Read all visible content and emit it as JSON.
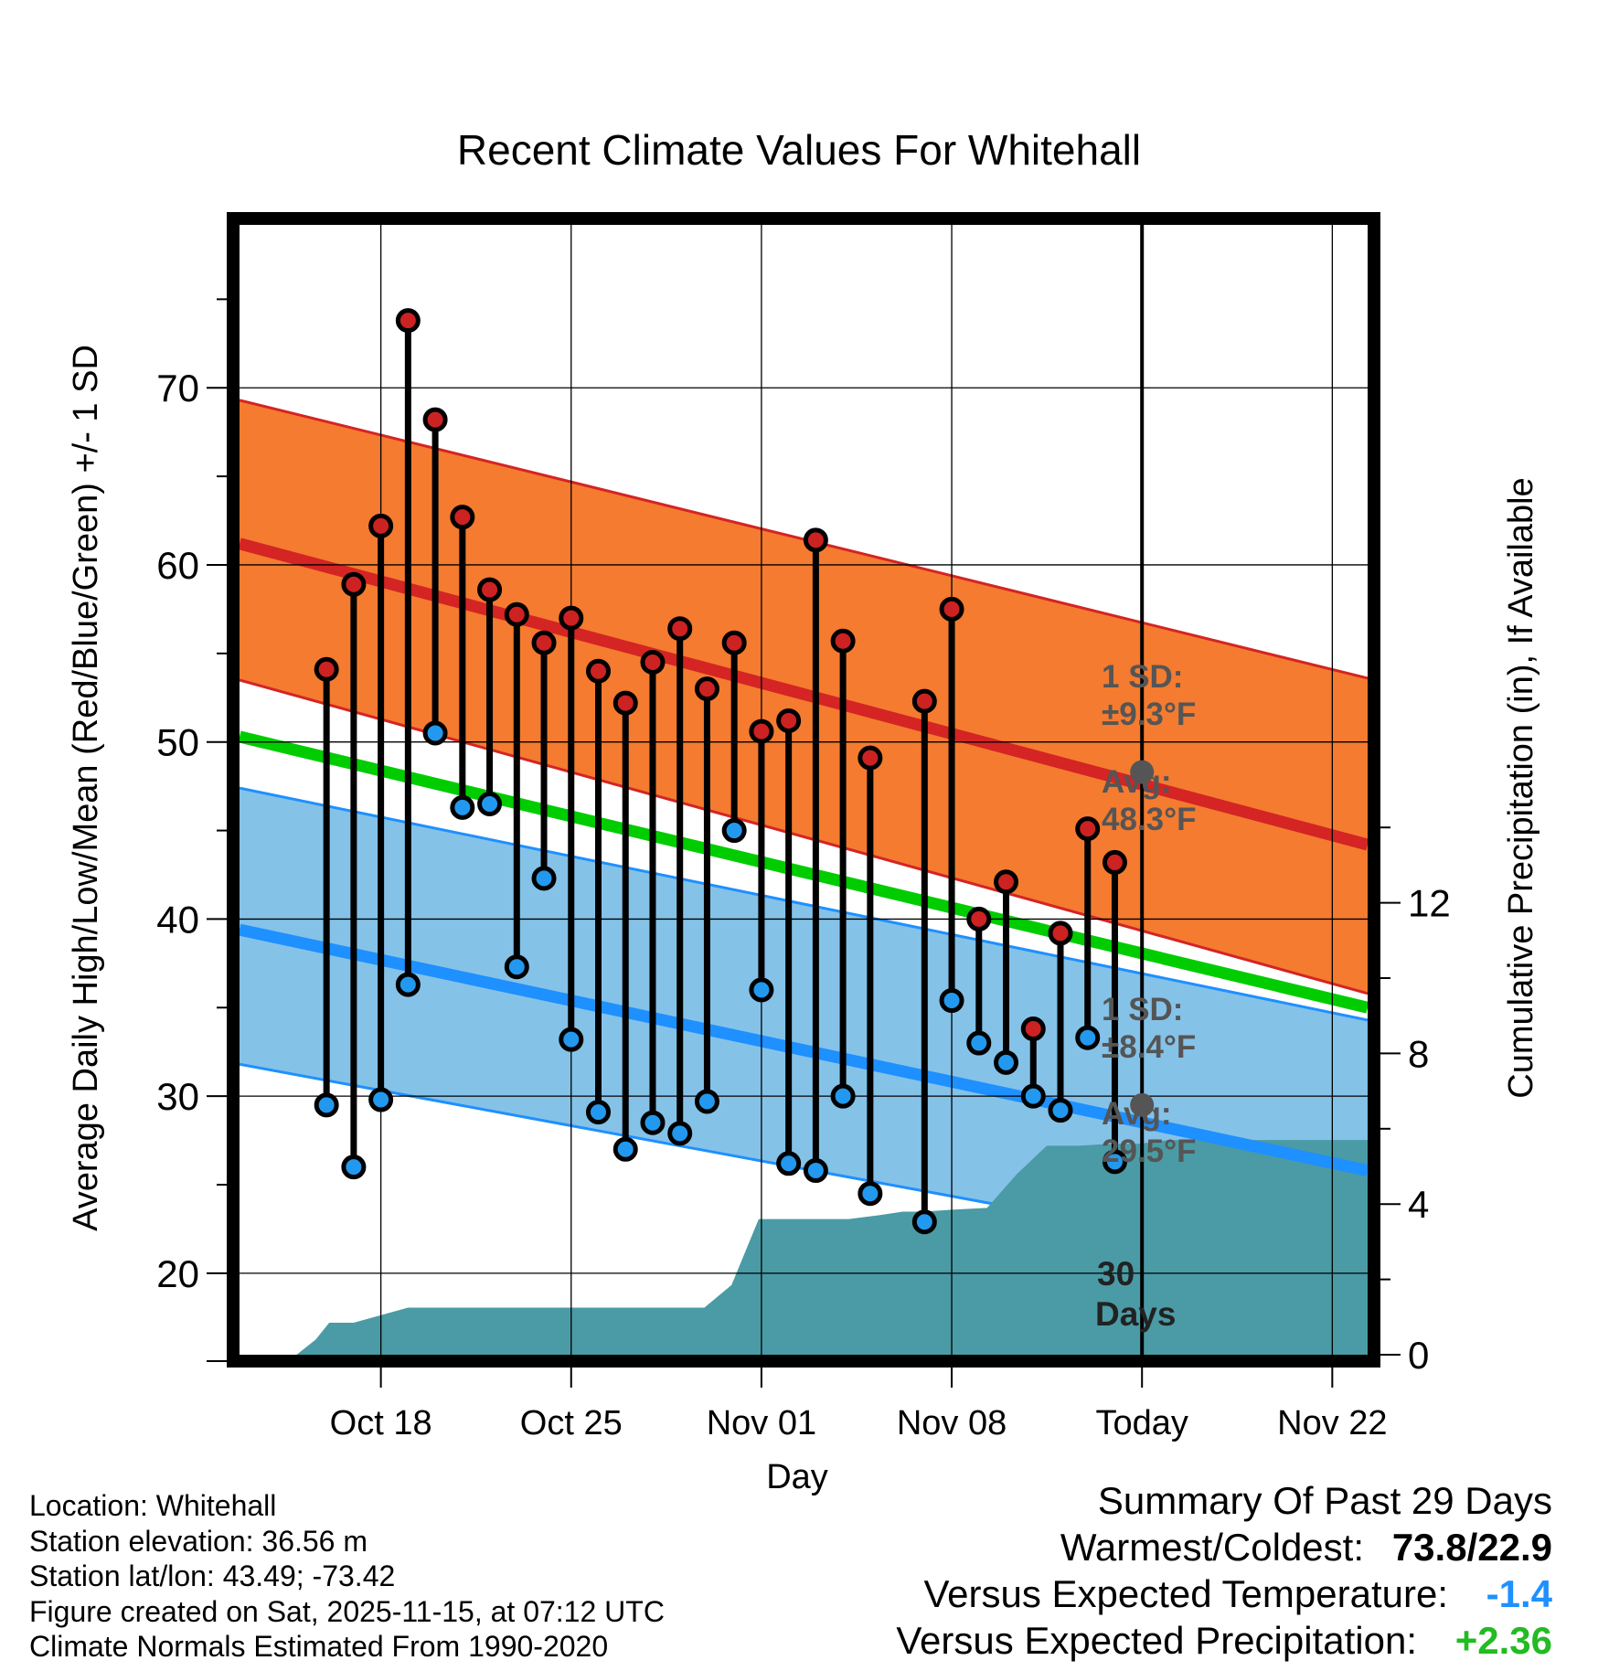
{
  "chart_data": {
    "type": "line",
    "title": "Recent Climate Values For Whitehall",
    "xlabel": "Day",
    "ylabel": "Average Daily High/Low/Mean (Red/Blue/Green) +/- 1 SD",
    "y2label": "Cumulative Precipitation (in), If Available",
    "x_range": [
      -5.2,
      36.3
    ],
    "ylim": [
      15.4,
      79.2
    ],
    "y2lim": [
      0,
      30
    ],
    "x_tick_days": [
      0,
      7,
      14,
      21,
      28,
      35
    ],
    "x_tick_labels": [
      "Oct 18",
      "Oct 25",
      "Nov 01",
      "Nov 08",
      "Today",
      "Nov 22"
    ],
    "y_ticks": [
      20,
      30,
      40,
      50,
      60,
      70
    ],
    "y2_ticks": [
      0,
      4,
      8,
      12
    ],
    "today_day": 28,
    "observed_days": [
      -2,
      -1,
      0,
      1,
      2,
      3,
      4,
      5,
      6,
      7,
      8,
      9,
      10,
      11,
      12,
      13,
      14,
      15,
      16,
      17,
      18,
      20,
      21,
      22,
      23,
      24,
      25,
      26,
      27
    ],
    "highs": [
      54.1,
      58.9,
      62.2,
      73.8,
      68.2,
      62.7,
      58.6,
      57.2,
      55.6,
      57.0,
      54.0,
      52.2,
      54.5,
      56.4,
      53.0,
      55.6,
      50.6,
      51.2,
      61.4,
      55.7,
      49.1,
      52.3,
      57.5,
      40.0,
      42.1,
      33.8,
      39.2,
      45.1,
      43.2
    ],
    "lows": [
      29.5,
      26.0,
      29.8,
      36.3,
      50.5,
      46.3,
      46.5,
      37.3,
      42.3,
      33.2,
      29.1,
      27.0,
      28.5,
      27.9,
      29.7,
      45.0,
      36.0,
      26.2,
      25.8,
      30.0,
      24.5,
      22.9,
      35.4,
      33.0,
      31.9,
      30.0,
      29.2,
      33.3,
      26.3
    ],
    "normal_high_line": {
      "day_start": -5.2,
      "day_end": 36.3,
      "start": 61.2,
      "end": 44.2
    },
    "normal_low_line": {
      "day_start": -5.2,
      "day_end": 36.3,
      "start": 39.4,
      "end": 25.8
    },
    "normal_mean_line": {
      "day_start": -5.2,
      "day_end": 36.3,
      "start": 50.3,
      "end": 35.0
    },
    "high_band": {
      "upper_start": 69.3,
      "upper_end": 53.6,
      "lower_start": 53.5,
      "lower_end": 35.8
    },
    "low_band": {
      "upper_start": 47.4,
      "upper_end": 34.3,
      "lower_start": 31.8,
      "lower_end": 20.0
    },
    "precip": {
      "days": [
        -3.1,
        -2.4,
        -1.9,
        -1,
        0,
        1,
        2,
        3,
        4,
        5,
        6,
        7,
        8,
        9,
        10,
        11,
        11.9,
        12.9,
        13.9,
        15.0,
        16.1,
        17.2,
        18.3,
        19.2,
        20.0,
        21.0,
        22.3,
        23.4,
        24.5,
        25.7,
        26.8,
        27.9,
        29.0,
        30.1,
        31.2,
        32.3,
        33.4,
        34.5,
        35.6,
        36.3
      ],
      "values": [
        0,
        0.4,
        0.85,
        0.85,
        1.05,
        1.25,
        1.25,
        1.25,
        1.25,
        1.25,
        1.25,
        1.25,
        1.25,
        1.25,
        1.25,
        1.25,
        1.25,
        1.85,
        3.6,
        3.6,
        3.6,
        3.6,
        3.7,
        3.8,
        3.8,
        3.85,
        3.9,
        4.8,
        5.55,
        5.55,
        5.6,
        5.6,
        5.7,
        5.7,
        5.7,
        5.7,
        5.7,
        5.7,
        5.7,
        5.7
      ]
    },
    "annotations": {
      "high_sd_label": "1 SD:",
      "high_sd_value": "±9.3°F",
      "high_avg_label": "Avg:",
      "high_avg_value": "48.3°F",
      "high_avg_point": 48.3,
      "low_sd_label": "1 SD:",
      "low_sd_value": "±8.4°F",
      "low_avg_label": "Avg:",
      "low_avg_value": "29.5°F",
      "low_avg_point": 29.5,
      "days_line1": "30",
      "days_line2": "Days"
    },
    "colors": {
      "high_band": "#f47b2f",
      "high_line": "#d42424",
      "low_band": "#85c2e8",
      "low_line": "#1e90ff",
      "mean_line": "#00cc00",
      "precip": "#4a9ba5",
      "high_dot": "#cc2222",
      "low_dot": "#2299ee",
      "annotation": "#555555",
      "frame": "#000000"
    }
  },
  "station": {
    "location": "Location: Whitehall",
    "elevation": "Station elevation: 36.56 m",
    "latlon": "Station lat/lon: 43.49; -73.42",
    "created": "Figure created on Sat, 2025-11-15, at 07:12 UTC",
    "normals": "Climate Normals Estimated From 1990-2020"
  },
  "summary": {
    "title": "Summary Of Past 29 Days",
    "warm_cold_label": "Warmest/Coldest:",
    "warm_cold_value": "73.8/22.9",
    "temp_label": "Versus Expected Temperature:",
    "temp_value": "-1.4",
    "temp_color": "#1e90ff",
    "precip_label": "Versus Expected Precipitation:",
    "precip_value": "+2.36",
    "precip_color": "#22bb22"
  }
}
